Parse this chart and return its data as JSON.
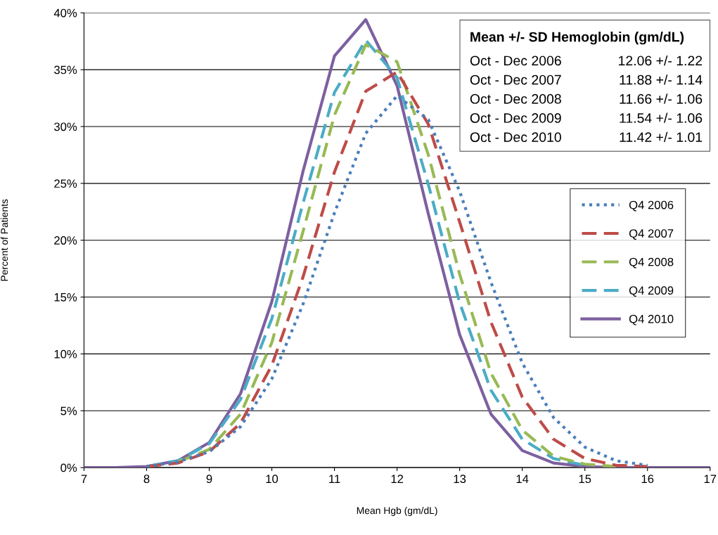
{
  "chart_data": {
    "type": "line",
    "xlabel": "Mean Hgb (gm/dL)",
    "ylabel": "Percent of Patients",
    "x": [
      7,
      7.5,
      8,
      8.5,
      9,
      9.5,
      10,
      10.5,
      11,
      11.5,
      12,
      12.5,
      13,
      13.5,
      14,
      14.5,
      15,
      15.5,
      16,
      16.5,
      17
    ],
    "series": [
      {
        "name": "Q4 2006",
        "color": "#4a7ebb",
        "line_style": "dotted",
        "values": [
          null,
          null,
          0.1,
          0.5,
          1.4,
          3.6,
          7.8,
          14.4,
          22.4,
          29.4,
          32.7,
          30.6,
          24.3,
          16.3,
          9.2,
          4.4,
          1.8,
          0.6,
          0.2,
          null,
          null
        ]
      },
      {
        "name": "Q4 2007",
        "color": "#be4b48",
        "line_style": "dashed",
        "values": [
          null,
          null,
          0.1,
          0.4,
          1.4,
          3.9,
          9.0,
          16.8,
          26.0,
          33.1,
          34.8,
          30.2,
          21.6,
          12.8,
          6.2,
          2.5,
          0.8,
          0.2,
          0.1,
          null,
          null
        ]
      },
      {
        "name": "Q4 2008",
        "color": "#98b954",
        "line_style": "dashed",
        "values": [
          null,
          null,
          null,
          0.5,
          1.6,
          4.7,
          11.0,
          20.8,
          31.0,
          37.2,
          35.7,
          27.5,
          17.0,
          8.3,
          3.3,
          1.0,
          0.3,
          0.1,
          null,
          null,
          null
        ]
      },
      {
        "name": "Q4 2009",
        "color": "#4bacc6",
        "line_style": "dashed",
        "values": [
          null,
          null,
          0.1,
          0.6,
          2.1,
          6.0,
          13.1,
          23.3,
          33.0,
          37.6,
          34.3,
          24.9,
          14.5,
          6.8,
          2.5,
          0.8,
          0.2,
          null,
          null,
          null,
          null
        ]
      },
      {
        "name": "Q4 2010",
        "color": "#7d60a0",
        "line_style": "solid",
        "values": [
          0,
          0,
          0.1,
          0.6,
          2.2,
          6.5,
          14.6,
          26.1,
          36.2,
          39.4,
          33.6,
          22.3,
          11.7,
          4.7,
          1.5,
          0.4,
          0.1,
          0,
          0,
          0,
          0
        ]
      }
    ],
    "xlim": [
      7,
      17
    ],
    "xticks": [
      7,
      8,
      9,
      10,
      11,
      12,
      13,
      14,
      15,
      16,
      17
    ],
    "ylim": [
      0,
      40
    ],
    "yticks": [
      {
        "value": 0,
        "label": "0%"
      },
      {
        "value": 5,
        "label": "5%"
      },
      {
        "value": 10,
        "label": "10%"
      },
      {
        "value": 15,
        "label": "15%"
      },
      {
        "value": 20,
        "label": "20%"
      },
      {
        "value": 25,
        "label": "25%"
      },
      {
        "value": 30,
        "label": "30%"
      },
      {
        "value": 35,
        "label": "35%"
      },
      {
        "value": 40,
        "label": "40%"
      }
    ],
    "grid": "y",
    "legend": "right",
    "marker": "none",
    "annotations": [
      "Mean +/- SD Hemoglobin (gm/dL)",
      "Oct - Dec 2006",
      "12.06 +/- 1.22",
      "Oct - Dec 2007",
      "11.88 +/- 1.14",
      "Oct - Dec 2008",
      "11.66 +/- 1.06",
      "Oct - Dec 2009",
      "11.54 +/- 1.06",
      "Oct - Dec 2010",
      "11.42 +/- 1.01"
    ]
  }
}
